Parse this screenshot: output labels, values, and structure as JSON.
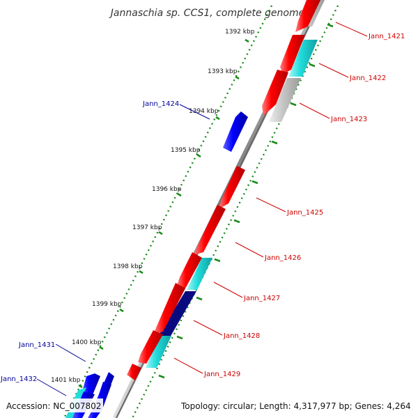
{
  "title": "Jannaschia sp. CCS1, complete genome",
  "footer": {
    "accession": "Accession: NC_007802",
    "summary": "Topology: circular; Length: 4,317,977 bp; Genes: 4,264"
  },
  "colors": {
    "forward_gene": "#ff0000",
    "reverse_gene": "#0000ff",
    "cds": "#22dddd",
    "dark_cds": "#0a0a80",
    "pseudo": "#c8c8c8",
    "forward_label": "#cc0000",
    "reverse_label": "#000099",
    "tick": "#1a8a1a",
    "backbone": "#888888"
  },
  "ticks": [
    {
      "kbp": 1392,
      "label": "1392 kbp"
    },
    {
      "kbp": 1393,
      "label": "1393 kbp"
    },
    {
      "kbp": 1394,
      "label": "1394 kbp"
    },
    {
      "kbp": 1395,
      "label": "1395 kbp"
    },
    {
      "kbp": 1396,
      "label": "1396 kbp"
    },
    {
      "kbp": 1397,
      "label": "1397 kbp"
    },
    {
      "kbp": 1398,
      "label": "1398 kbp"
    },
    {
      "kbp": 1399,
      "label": "1399 kbp"
    },
    {
      "kbp": 1400,
      "label": "1400 kbp"
    },
    {
      "kbp": 1401,
      "label": "1401 kbp"
    }
  ],
  "gene_labels": [
    {
      "name": "Jann_1421",
      "strand": "forward"
    },
    {
      "name": "Jann_1422",
      "strand": "forward"
    },
    {
      "name": "Jann_1423",
      "strand": "forward"
    },
    {
      "name": "Jann_1424",
      "strand": "reverse"
    },
    {
      "name": "Jann_1425",
      "strand": "forward"
    },
    {
      "name": "Jann_1426",
      "strand": "forward"
    },
    {
      "name": "Jann_1427",
      "strand": "forward"
    },
    {
      "name": "Jann_1428",
      "strand": "forward"
    },
    {
      "name": "Jann_1429",
      "strand": "forward"
    },
    {
      "name": "Jann_1431",
      "strand": "reverse"
    },
    {
      "name": "Jann_1432",
      "strand": "reverse"
    }
  ]
}
